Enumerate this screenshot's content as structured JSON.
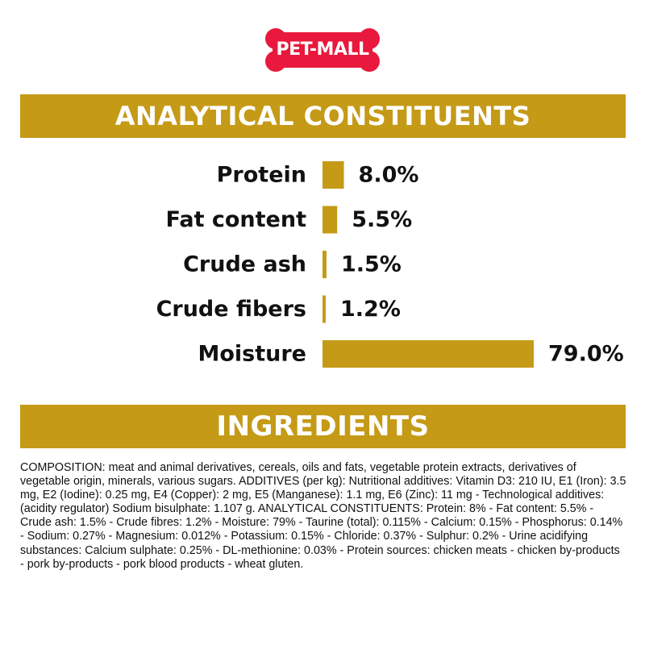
{
  "logo": {
    "text": "PET-MALL",
    "color": "#e8193c"
  },
  "sections": {
    "analytical_title": "ANALYTICAL CONSTITUENTS",
    "ingredients_title": "INGREDIENTS"
  },
  "colors": {
    "accent": "#c59a17",
    "text": "#111111"
  },
  "chart_data": {
    "type": "bar",
    "orientation": "horizontal",
    "categories": [
      "Protein",
      "Fat content",
      "Crude ash",
      "Crude fibers",
      "Moisture"
    ],
    "values": [
      8.0,
      5.5,
      1.5,
      1.2,
      79.0
    ],
    "value_labels": [
      "8.0%",
      "5.5%",
      "1.5%",
      "1.2%",
      "79.0%"
    ],
    "unit": "%",
    "xlim": [
      0,
      79.0
    ],
    "grid": false,
    "legend": "none"
  },
  "composition": "COMPOSITION: meat and animal derivatives, cereals, oils and fats, vegetable protein extracts, derivatives of vegetable origin, minerals, various sugars. ADDITIVES (per kg): Nutritional additives: Vitamin D3: 210 IU, E1 (Iron): 3.5 mg, E2 (Iodine): 0.25 mg, E4 (Copper): 2 mg, E5 (Manganese): 1.1 mg, E6 (Zinc): 11 mg - Technological additives: (acidity regulator) Sodium bisulphate: 1.107 g. ANALYTICAL CONSTITUENTS: Protein: 8% - Fat content: 5.5% - Crude ash: 1.5% - Crude fibres: 1.2% - Moisture: 79% - Taurine (total): 0.115% - Calcium: 0.15% - Phosphorus: 0.14% - Sodium: 0.27% - Magnesium: 0.012% - Potassium: 0.15% - Chloride: 0.37% - Sulphur: 0.2% - Urine acidifying substances: Calcium sulphate: 0.25% - DL-methionine: 0.03% - Protein sources: chicken meats - chicken by-products - pork by-products - pork blood products - wheat gluten."
}
